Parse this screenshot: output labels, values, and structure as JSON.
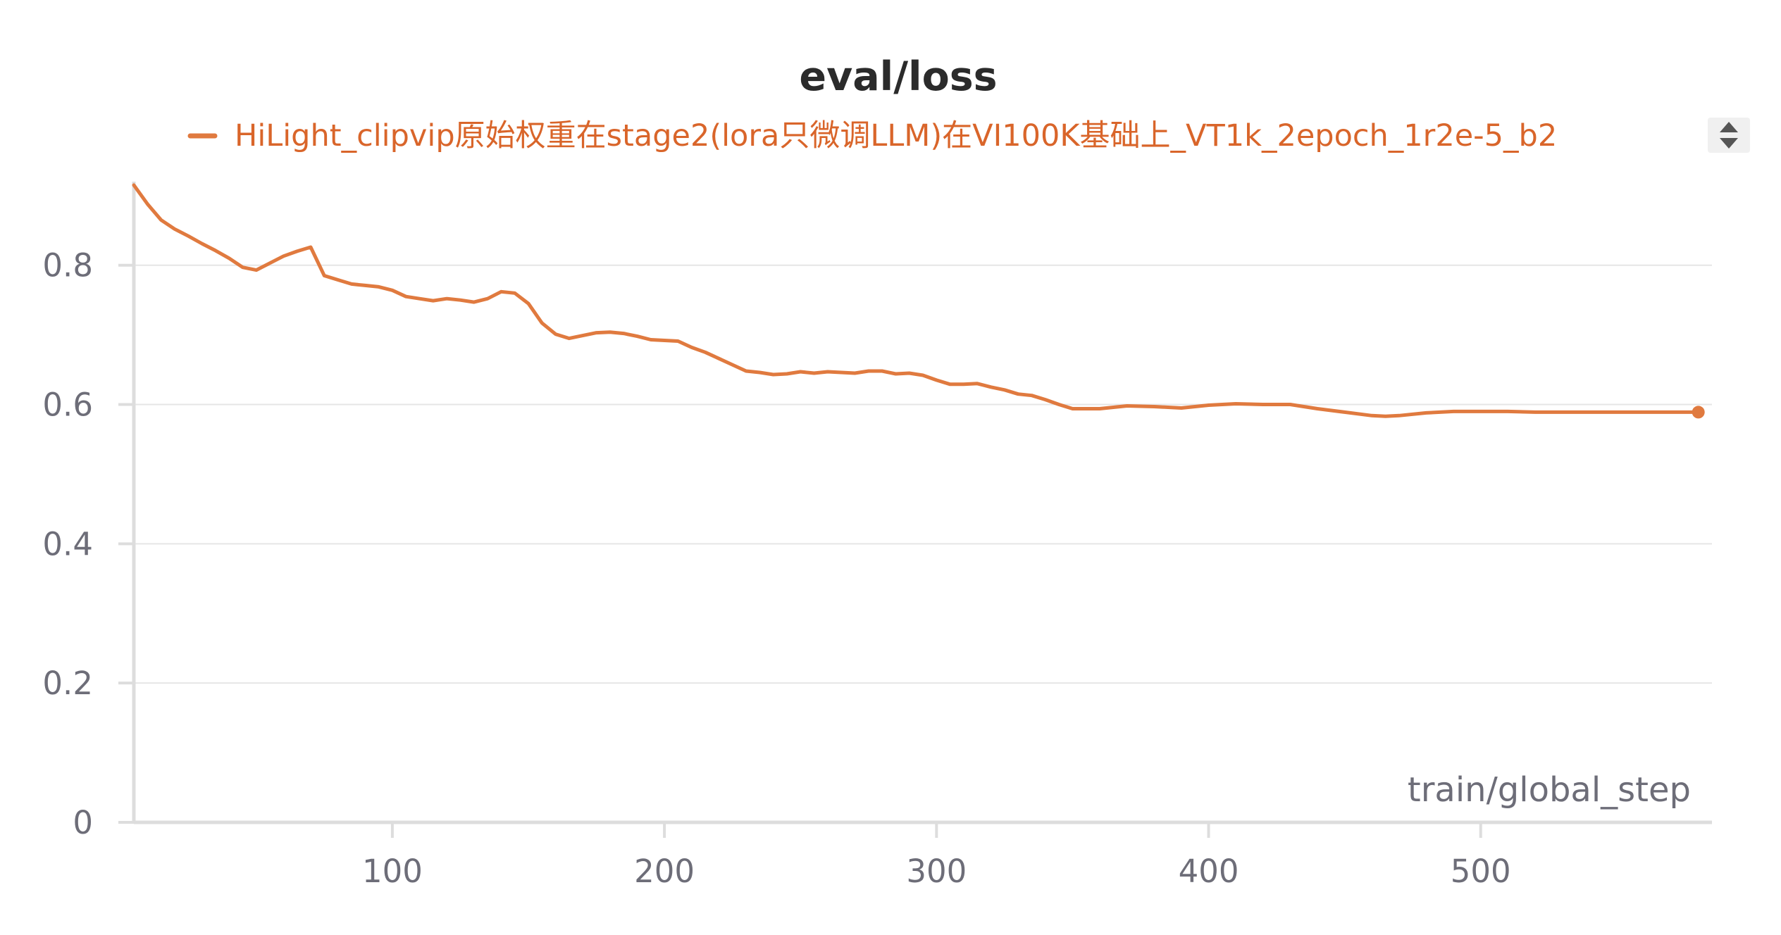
{
  "colors": {
    "series": "#e07a3f",
    "legend_text": "#d9652a",
    "grid": "#e6e6e6",
    "axis": "#dddddd",
    "text": "#6d6d78",
    "title": "#2b2b2b"
  },
  "legend_scroller": {
    "icon": "chevron-up-down-icon"
  },
  "chart_data": {
    "type": "line",
    "title": "eval/loss",
    "xlabel": "train/global_step",
    "ylabel": "",
    "xlim": [
      5,
      585
    ],
    "ylim": [
      0,
      0.92
    ],
    "x_ticks": [
      100,
      200,
      300,
      400,
      500
    ],
    "y_ticks": [
      0,
      0.2,
      0.4,
      0.6,
      0.8
    ],
    "x_tick_labels": [
      "100",
      "200",
      "300",
      "400",
      "500"
    ],
    "y_tick_labels": [
      "0",
      "0.2",
      "0.4",
      "0.6",
      "0.8"
    ],
    "grid": true,
    "legend_position": "top",
    "series": [
      {
        "name": "HiLight_clipvip原始权重在stage2(lora只微调LLM)在VI100K基础上_VT1k_2epoch_1r2e-5_b2",
        "x": [
          5,
          10,
          15,
          20,
          25,
          30,
          35,
          40,
          45,
          50,
          55,
          60,
          65,
          70,
          75,
          80,
          85,
          90,
          95,
          100,
          105,
          110,
          115,
          120,
          125,
          130,
          135,
          140,
          145,
          150,
          155,
          160,
          165,
          170,
          175,
          180,
          185,
          190,
          195,
          200,
          205,
          210,
          215,
          220,
          225,
          230,
          235,
          240,
          245,
          250,
          255,
          260,
          265,
          270,
          275,
          280,
          285,
          290,
          295,
          300,
          305,
          310,
          315,
          320,
          325,
          330,
          335,
          340,
          345,
          350,
          360,
          370,
          380,
          390,
          400,
          410,
          420,
          430,
          440,
          450,
          460,
          465,
          470,
          480,
          490,
          500,
          510,
          520,
          530,
          540,
          550,
          560,
          570,
          580
        ],
        "y": [
          0.915,
          0.888,
          0.865,
          0.852,
          0.842,
          0.831,
          0.821,
          0.81,
          0.797,
          0.793,
          0.803,
          0.813,
          0.82,
          0.826,
          0.785,
          0.779,
          0.773,
          0.771,
          0.769,
          0.764,
          0.755,
          0.752,
          0.749,
          0.752,
          0.75,
          0.747,
          0.752,
          0.762,
          0.76,
          0.745,
          0.717,
          0.701,
          0.695,
          0.699,
          0.703,
          0.704,
          0.702,
          0.698,
          0.693,
          0.692,
          0.691,
          0.682,
          0.675,
          0.666,
          0.657,
          0.648,
          0.646,
          0.643,
          0.644,
          0.647,
          0.645,
          0.647,
          0.646,
          0.645,
          0.648,
          0.648,
          0.644,
          0.645,
          0.642,
          0.635,
          0.629,
          0.629,
          0.63,
          0.625,
          0.621,
          0.615,
          0.613,
          0.607,
          0.6,
          0.594,
          0.594,
          0.598,
          0.597,
          0.595,
          0.599,
          0.601,
          0.6,
          0.6,
          0.594,
          0.589,
          0.584,
          0.583,
          0.584,
          0.588,
          0.59,
          0.59,
          0.59,
          0.589,
          0.589,
          0.589,
          0.589,
          0.589,
          0.589,
          0.589
        ]
      }
    ]
  }
}
